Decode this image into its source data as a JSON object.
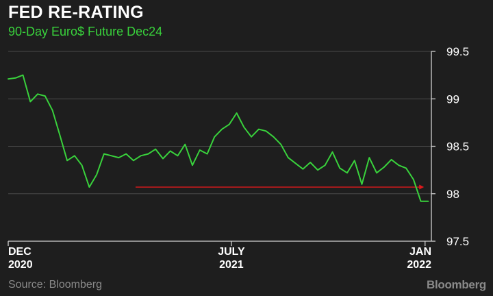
{
  "header": {
    "title": "FED RE-RATING",
    "subtitle": "90-Day Euro$ Future Dec24"
  },
  "footer": {
    "source": "Source: Bloomberg",
    "brand": "Bloomberg"
  },
  "colors": {
    "background": "#1e1e1e",
    "line": "#39d23c",
    "subtitle": "#39d23c",
    "reference_line": "#e0191c",
    "axis_text": "#ffffff",
    "grid": "#4a4a4a"
  },
  "chart_data": {
    "type": "line",
    "title": "FED RE-RATING",
    "subtitle": "90-Day Euro$ Future Dec24",
    "xlabel": "",
    "ylabel": "",
    "ylim": [
      97.5,
      99.5
    ],
    "xlim": [
      "2020-12-01",
      "2022-01-07"
    ],
    "y_axis_position": "right",
    "grid": "horizontal",
    "legend": "none",
    "y_ticks": [
      {
        "value": 97.5,
        "label": "97.5"
      },
      {
        "value": 98,
        "label": "98"
      },
      {
        "value": 98.5,
        "label": "98.5"
      },
      {
        "value": 99,
        "label": "99"
      },
      {
        "value": 99.5,
        "label": "99.5"
      }
    ],
    "x_ticks": [
      {
        "date": "2020-12-01",
        "line1": "DEC",
        "line2": "2020"
      },
      {
        "date": "2021-07-01",
        "line1": "JULY",
        "line2": "2021"
      },
      {
        "date": "2022-01-01",
        "line1": "JAN",
        "line2": "2022"
      }
    ],
    "series": [
      {
        "x": [
          "2020-12-01",
          "2020-12-08",
          "2020-12-15",
          "2020-12-22",
          "2020-12-29",
          "2021-01-05",
          "2021-01-12",
          "2021-01-19",
          "2021-01-26",
          "2021-02-02",
          "2021-02-09",
          "2021-02-16",
          "2021-02-23",
          "2021-03-02",
          "2021-03-09",
          "2021-03-16",
          "2021-03-23",
          "2021-03-30",
          "2021-04-06",
          "2021-04-13",
          "2021-04-20",
          "2021-04-27",
          "2021-05-04",
          "2021-05-11",
          "2021-05-18",
          "2021-05-25",
          "2021-06-01",
          "2021-06-08",
          "2021-06-15",
          "2021-06-22",
          "2021-06-29",
          "2021-07-06",
          "2021-07-13",
          "2021-07-20",
          "2021-07-27",
          "2021-08-03",
          "2021-08-10",
          "2021-08-17",
          "2021-08-24",
          "2021-08-31",
          "2021-09-07",
          "2021-09-14",
          "2021-09-21",
          "2021-09-28",
          "2021-10-05",
          "2021-10-12",
          "2021-10-19",
          "2021-10-26",
          "2021-11-02",
          "2021-11-09",
          "2021-11-16",
          "2021-11-23",
          "2021-11-30",
          "2021-12-07",
          "2021-12-14",
          "2021-12-21",
          "2021-12-28",
          "2022-01-04"
        ],
        "values": [
          99.21,
          99.22,
          99.25,
          98.97,
          99.05,
          99.03,
          98.88,
          98.62,
          98.35,
          98.4,
          98.3,
          98.07,
          98.2,
          98.42,
          98.4,
          98.38,
          98.42,
          98.35,
          98.4,
          98.42,
          98.47,
          98.37,
          98.45,
          98.4,
          98.52,
          98.3,
          98.46,
          98.42,
          98.6,
          98.68,
          98.73,
          98.85,
          98.7,
          98.6,
          98.68,
          98.66,
          98.6,
          98.52,
          98.38,
          98.32,
          98.26,
          98.33,
          98.25,
          98.3,
          98.44,
          98.27,
          98.22,
          98.35,
          98.1,
          98.38,
          98.22,
          98.28,
          98.36,
          98.3,
          98.27,
          98.15,
          97.92,
          97.92
        ]
      }
    ],
    "reference_line": {
      "value": 98.07,
      "from": "2021-04-01",
      "to": "2021-12-31"
    }
  }
}
